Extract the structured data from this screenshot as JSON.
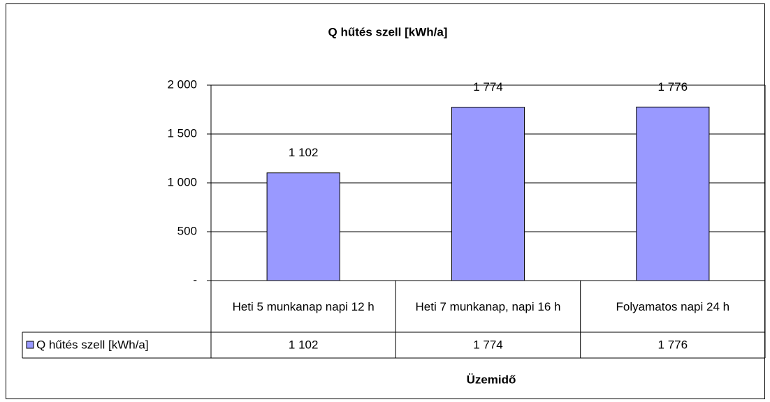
{
  "chart_data": {
    "type": "bar",
    "title": "Q hűtés szell [kWh/a]",
    "x_label": "Üzemidő",
    "categories": [
      "Heti 5 munkanap napi 12 h",
      "Heti 7 munkanap, napi 16 h",
      "Folyamatos napi 24 h"
    ],
    "series": [
      {
        "name": "Q hűtés szell [kWh/a]",
        "color": "#9999ff",
        "values": [
          1102,
          1774,
          1776
        ],
        "value_labels": [
          "1 102",
          "1 774",
          "1 776"
        ]
      }
    ],
    "ylim": [
      0,
      2000
    ],
    "yticks": [
      {
        "value": 0,
        "label": "-"
      },
      {
        "value": 500,
        "label": "500"
      },
      {
        "value": 1000,
        "label": "1 000"
      },
      {
        "value": 1500,
        "label": "1 500"
      },
      {
        "value": 2000,
        "label": "2 000"
      }
    ],
    "grid": true
  }
}
